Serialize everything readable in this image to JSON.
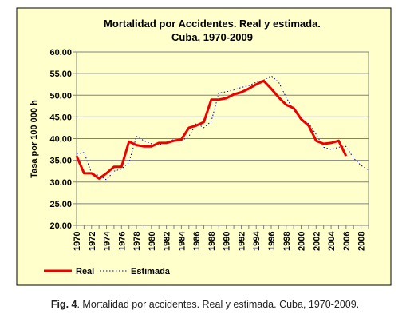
{
  "caption": {
    "prefix": "Fig. 4",
    "text": ". Mortalidad por accidentes. Real y estimada. Cuba, 1970-2009."
  },
  "chart_data": {
    "type": "line",
    "title": "Mortalidad por Accidentes. Real y estimada.",
    "subtitle": "Cuba, 1970-2009",
    "xlabel": "",
    "ylabel": "Tasa por 100 000 h",
    "ylim": [
      20,
      60
    ],
    "ytick_step": 5,
    "ytick_labels": [
      "20.00",
      "25.00",
      "30.00",
      "35.00",
      "40.00",
      "45.00",
      "50.00",
      "55.00",
      "60.00"
    ],
    "xlim": [
      1970,
      2009
    ],
    "xtick_labels": [
      "1970",
      "1972",
      "1974",
      "1976",
      "1978",
      "1980",
      "1982",
      "1984",
      "1986",
      "1988",
      "1990",
      "1992",
      "1994",
      "1996",
      "1998",
      "2000",
      "2002",
      "2004",
      "2006",
      "2008"
    ],
    "grid": true,
    "legend_position": "bottom-left",
    "plot_background": "#ffffcc",
    "frame_background": "#ffffcc",
    "series": [
      {
        "name": "Real",
        "color": "#ee0000",
        "style": "solid",
        "x": [
          1970,
          1971,
          1972,
          1973,
          1974,
          1975,
          1976,
          1977,
          1978,
          1979,
          1980,
          1981,
          1982,
          1983,
          1984,
          1985,
          1986,
          1987,
          1988,
          1989,
          1990,
          1991,
          1992,
          1993,
          1994,
          1995,
          1996,
          1997,
          1998,
          1999,
          2000,
          2001,
          2002,
          2003,
          2004,
          2005,
          2006
        ],
        "values": [
          36.0,
          32.0,
          32.0,
          30.8,
          32.0,
          33.5,
          33.5,
          39.3,
          38.5,
          38.2,
          38.2,
          39.0,
          39.0,
          39.5,
          39.8,
          42.5,
          43.0,
          43.8,
          49.0,
          49.0,
          49.3,
          50.2,
          50.7,
          51.5,
          52.5,
          53.3,
          51.5,
          49.5,
          47.8,
          47.0,
          44.5,
          43.0,
          39.5,
          38.8,
          39.0,
          39.5,
          36.0
        ]
      },
      {
        "name": "Estimada",
        "color": "#0000cc",
        "style": "dotted",
        "x": [
          1970,
          1971,
          1972,
          1973,
          1974,
          1975,
          1976,
          1977,
          1978,
          1979,
          1980,
          1981,
          1982,
          1983,
          1984,
          1985,
          1986,
          1987,
          1988,
          1989,
          1990,
          1991,
          1992,
          1993,
          1994,
          1995,
          1996,
          1997,
          1998,
          1999,
          2000,
          2001,
          2002,
          2003,
          2004,
          2005,
          2006,
          2007,
          2008,
          2009
        ],
        "values": [
          36.5,
          36.8,
          32.0,
          31.5,
          30.5,
          32.5,
          33.0,
          34.5,
          40.5,
          39.5,
          38.8,
          38.5,
          39.2,
          39.8,
          39.5,
          40.5,
          43.5,
          42.5,
          44.0,
          50.5,
          50.8,
          51.2,
          51.8,
          52.2,
          53.0,
          53.5,
          54.5,
          53.0,
          49.5,
          46.5,
          44.5,
          43.5,
          41.0,
          38.0,
          37.5,
          38.0,
          38.2,
          35.5,
          33.8,
          32.8
        ]
      }
    ]
  }
}
